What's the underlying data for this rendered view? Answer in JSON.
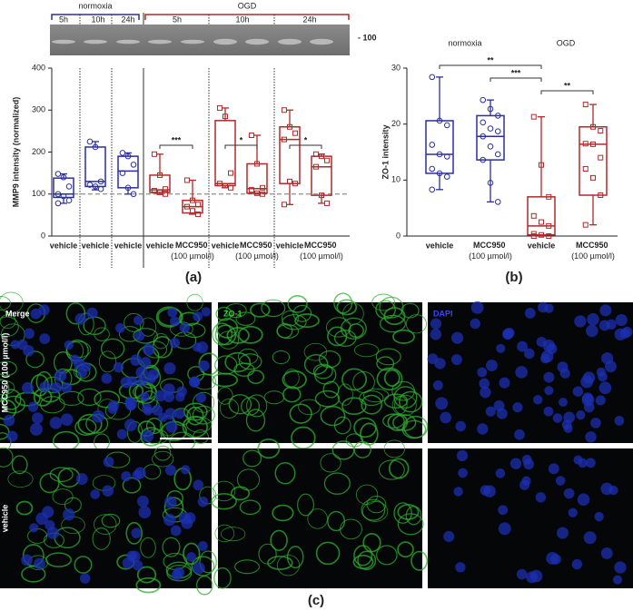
{
  "chart_data": [
    {
      "type": "box",
      "ylabel": "MMP9 intensity (normalized)",
      "ylim": [
        0,
        400
      ],
      "yticks": [
        0,
        100,
        200,
        300,
        400
      ],
      "reference_line": 100,
      "categories": [
        "vehicle",
        "vehicle",
        "vehicle",
        "vehicle",
        "MCC950 (100 µmol/l)",
        "vehicle",
        "MCC950 (100 µmol/l)",
        "vehicle",
        "MCC950 (100 µmol/l)"
      ],
      "boxes": [
        {
          "color": "#2b2f9e",
          "marker": "circle",
          "min": 78,
          "q1": 92,
          "median": 100,
          "q3": 138,
          "max": 148,
          "points": [
            148,
            140,
            118,
            100,
            95,
            85,
            78
          ]
        },
        {
          "color": "#2b2f9e",
          "marker": "circle",
          "min": 110,
          "q1": 118,
          "median": 130,
          "q3": 212,
          "max": 225,
          "points": [
            225,
            212,
            130,
            122,
            118,
            112
          ]
        },
        {
          "color": "#2b2f9e",
          "marker": "circle",
          "min": 100,
          "q1": 115,
          "median": 155,
          "q3": 190,
          "max": 198,
          "points": [
            198,
            190,
            170,
            150,
            115,
            100
          ]
        },
        {
          "color": "#b02a2a",
          "marker": "square",
          "min": 100,
          "q1": 104,
          "median": 110,
          "q3": 145,
          "max": 195,
          "points": [
            195,
            145,
            112,
            108,
            104,
            100
          ]
        },
        {
          "color": "#b02a2a",
          "marker": "square",
          "min": 52,
          "q1": 55,
          "median": 70,
          "q3": 85,
          "max": 133,
          "points": [
            133,
            85,
            75,
            70,
            60,
            52
          ]
        },
        {
          "color": "#b02a2a",
          "marker": "square",
          "min": 115,
          "q1": 120,
          "median": 125,
          "q3": 275,
          "max": 305,
          "points": [
            305,
            285,
            150,
            125,
            120,
            115
          ]
        },
        {
          "color": "#b02a2a",
          "marker": "square",
          "min": 100,
          "q1": 102,
          "median": 113,
          "q3": 172,
          "max": 240,
          "points": [
            240,
            172,
            115,
            110,
            102,
            100
          ]
        },
        {
          "color": "#b02a2a",
          "marker": "square",
          "min": 75,
          "q1": 125,
          "median": 230,
          "q3": 260,
          "max": 300,
          "points": [
            300,
            260,
            245,
            230,
            130,
            125,
            75
          ]
        },
        {
          "color": "#b02a2a",
          "marker": "square",
          "min": 78,
          "q1": 97,
          "median": 165,
          "q3": 190,
          "max": 195,
          "points": [
            195,
            190,
            180,
            165,
            97,
            78
          ]
        }
      ],
      "significance": [
        "***",
        "*",
        "*"
      ]
    },
    {
      "type": "box",
      "ylabel": "ZO-1 intensity",
      "ylim": [
        0,
        30
      ],
      "yticks": [
        0,
        10,
        20,
        30
      ],
      "group_labels": [
        "normoxia",
        "OGD"
      ],
      "categories": [
        "vehicle",
        "MCC950 (100 µmol/l)",
        "vehicle",
        "MCC950 (100 µmol/l)"
      ],
      "boxes": [
        {
          "color": "#2b2f9e",
          "marker": "circle",
          "min": 8.3,
          "q1": 11.2,
          "median": 14.6,
          "q3": 20.6,
          "max": 28.4,
          "points": [
            28.4,
            20.6,
            19.8,
            16.3,
            14.6,
            14.2,
            12,
            11.2,
            10.6,
            8.3
          ]
        },
        {
          "color": "#2b2f9e",
          "marker": "circle",
          "min": 6.1,
          "q1": 13.6,
          "median": 17.8,
          "q3": 21.5,
          "max": 24.3,
          "points": [
            24.3,
            22.7,
            21.5,
            20.3,
            19.2,
            18.7,
            17.8,
            16,
            14.6,
            13.6,
            9.5,
            6.1
          ]
        },
        {
          "color": "#b02a2a",
          "marker": "square",
          "min": 0,
          "q1": 0.2,
          "median": 1.8,
          "q3": 7,
          "max": 21.3,
          "points": [
            21.3,
            12.7,
            7,
            3.6,
            2.5,
            1.8,
            0.4,
            0.2,
            0,
            0
          ]
        },
        {
          "color": "#b02a2a",
          "marker": "square",
          "min": 2,
          "q1": 7.3,
          "median": 16.4,
          "q3": 19.5,
          "max": 23.5,
          "points": [
            23.5,
            19.5,
            18.8,
            16.5,
            16.4,
            14,
            12,
            10.4,
            7.3,
            2
          ]
        }
      ],
      "significance": [
        "**",
        "***",
        "**"
      ]
    }
  ],
  "blot": {
    "groups": [
      "normoxia",
      "OGD"
    ],
    "timepoints": [
      "5h",
      "10h",
      "24h",
      "5h",
      "10h",
      "24h"
    ],
    "marker_label": "- 100"
  },
  "images": {
    "columns": [
      "Merge",
      "ZO-1",
      "DAPI"
    ],
    "rows": [
      "MCC950 (100 µmol/l)",
      "vehicle"
    ]
  },
  "panels": [
    "(a)",
    "(b)",
    "(c)"
  ]
}
